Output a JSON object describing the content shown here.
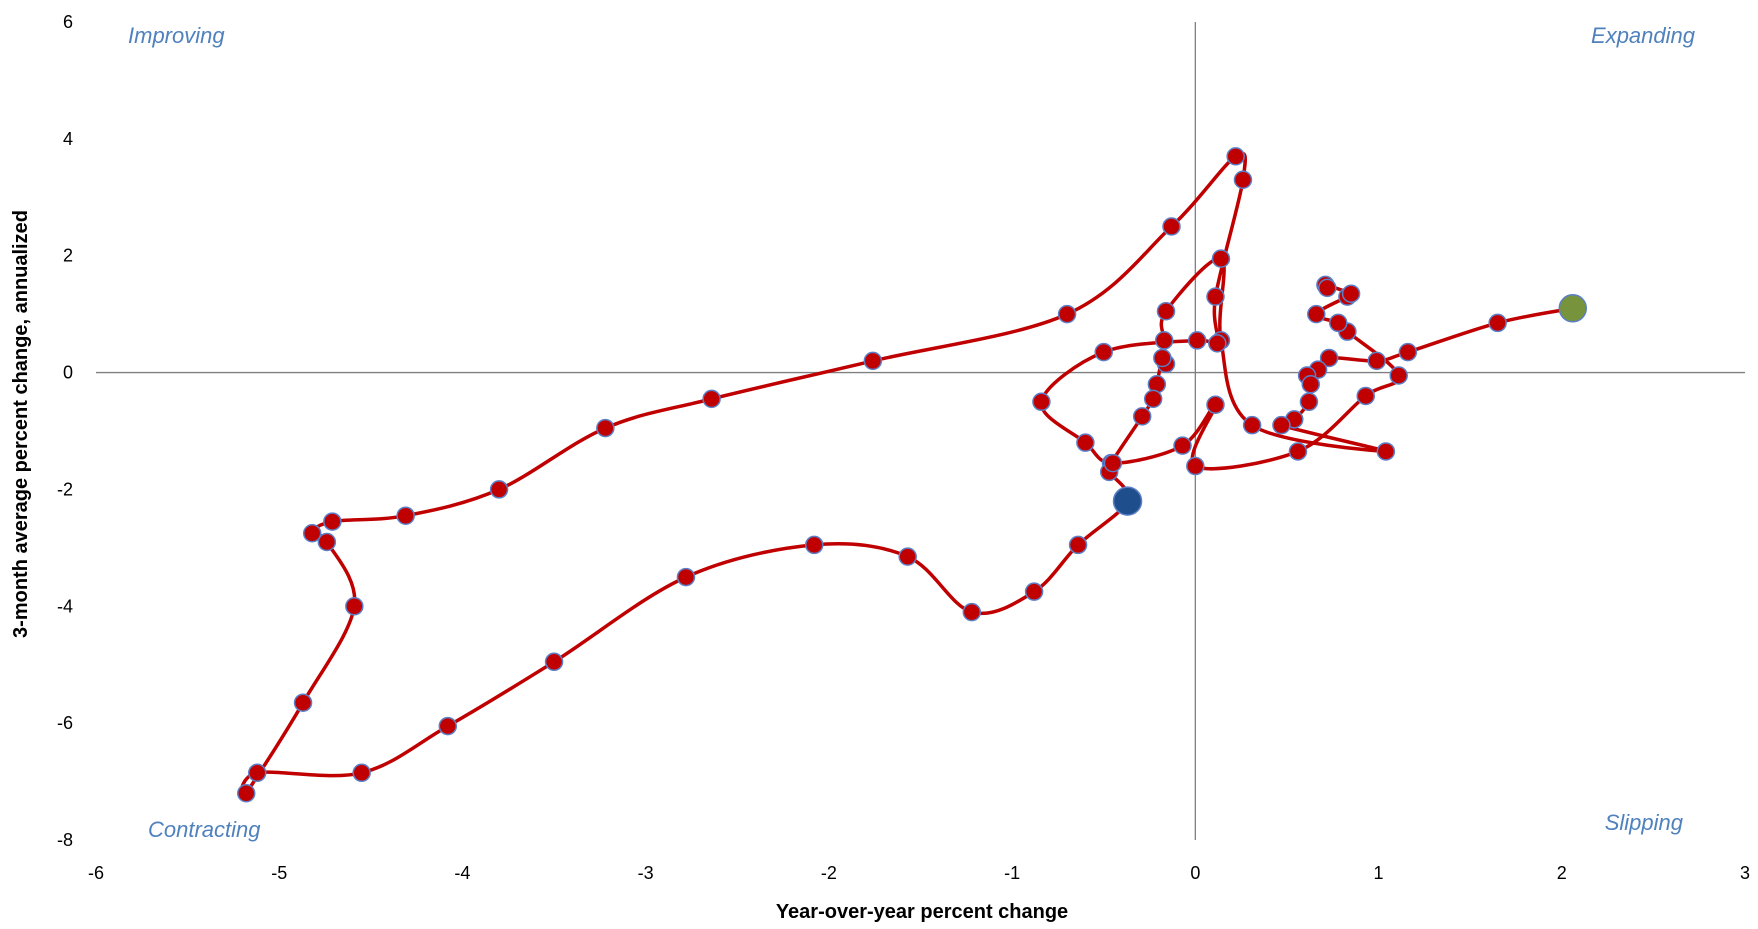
{
  "chart_data": {
    "type": "scatter",
    "xlabel": "Year-over-year percent change",
    "ylabel": "3-month average percent change, annualized",
    "xlim": [
      -6,
      3
    ],
    "ylim": [
      -8,
      6
    ],
    "xticks": [
      "-6",
      "-5",
      "-4",
      "-3",
      "-2",
      "-1",
      "0",
      "1",
      "2",
      "3"
    ],
    "yticks": [
      "6",
      "4",
      "2",
      "0",
      "-2",
      "-4",
      "-6",
      "-8"
    ],
    "quadrant_labels": {
      "top_left": "Improving",
      "top_right": "Expanding",
      "bottom_left": "Contracting",
      "bottom_right": "Slipping"
    },
    "grid": false,
    "colors": {
      "line": "#c00000",
      "marker_fill": "#c00000",
      "marker_edge": "#5b7fc7",
      "start_marker": "#77933c",
      "end_marker": "#1f4e8c",
      "quadrant_text": "#4f81bd",
      "axis_line": "#808080"
    },
    "points": [
      [
        2.06,
        1.1
      ],
      [
        1.65,
        0.85
      ],
      [
        1.16,
        0.35
      ],
      [
        0.99,
        0.2
      ],
      [
        0.73,
        0.25
      ],
      [
        0.67,
        0.05
      ],
      [
        0.61,
        -0.05
      ],
      [
        0.63,
        -0.2
      ],
      [
        0.62,
        -0.5
      ],
      [
        0.54,
        -0.8
      ],
      [
        0.47,
        -0.9
      ],
      [
        1.04,
        -1.35
      ],
      [
        0.31,
        -0.9
      ],
      [
        0.14,
        0.55
      ],
      [
        0.14,
        1.95
      ],
      [
        -0.16,
        1.05
      ],
      [
        -0.17,
        0.55
      ],
      [
        -0.16,
        0.15
      ],
      [
        -0.18,
        0.25
      ],
      [
        -0.21,
        -0.2
      ],
      [
        -0.23,
        -0.45
      ],
      [
        -0.29,
        -0.75
      ],
      [
        -0.46,
        -1.55
      ],
      [
        -0.47,
        -1.7
      ],
      [
        -0.37,
        -2.2
      ],
      [
        -0.64,
        -2.95
      ],
      [
        -0.88,
        -3.75
      ],
      [
        -1.22,
        -4.1
      ],
      [
        -1.57,
        -3.15
      ],
      [
        -2.08,
        -2.95
      ],
      [
        -2.78,
        -3.5
      ],
      [
        -3.5,
        -4.95
      ],
      [
        -4.08,
        -6.05
      ],
      [
        -4.55,
        -6.85
      ],
      [
        -5.12,
        -6.85
      ],
      [
        -5.18,
        -7.2
      ],
      [
        -4.87,
        -5.65
      ],
      [
        -4.59,
        -4.0
      ],
      [
        -4.74,
        -2.9
      ],
      [
        -4.82,
        -2.75
      ],
      [
        -4.71,
        -2.55
      ],
      [
        -4.31,
        -2.45
      ],
      [
        -3.8,
        -2.0
      ],
      [
        -3.22,
        -0.95
      ],
      [
        -2.64,
        -0.45
      ],
      [
        -1.76,
        0.2
      ],
      [
        -0.7,
        1.0
      ],
      [
        -0.13,
        2.5
      ],
      [
        0.22,
        3.7
      ],
      [
        0.26,
        3.3
      ],
      [
        0.11,
        1.3
      ],
      [
        0.12,
        0.5
      ],
      [
        0.01,
        0.55
      ],
      [
        -0.5,
        0.35
      ],
      [
        -0.84,
        -0.5
      ],
      [
        -0.6,
        -1.2
      ],
      [
        -0.45,
        -1.55
      ],
      [
        -0.07,
        -1.25
      ],
      [
        0.11,
        -0.55
      ],
      [
        0.0,
        -1.6
      ],
      [
        0.56,
        -1.35
      ],
      [
        0.93,
        -0.4
      ],
      [
        1.11,
        -0.05
      ],
      [
        0.83,
        0.7
      ],
      [
        0.78,
        0.85
      ],
      [
        0.66,
        1.0
      ],
      [
        0.83,
        1.3
      ],
      [
        0.85,
        1.35
      ],
      [
        0.71,
        1.5
      ],
      [
        0.72,
        1.45
      ]
    ]
  }
}
